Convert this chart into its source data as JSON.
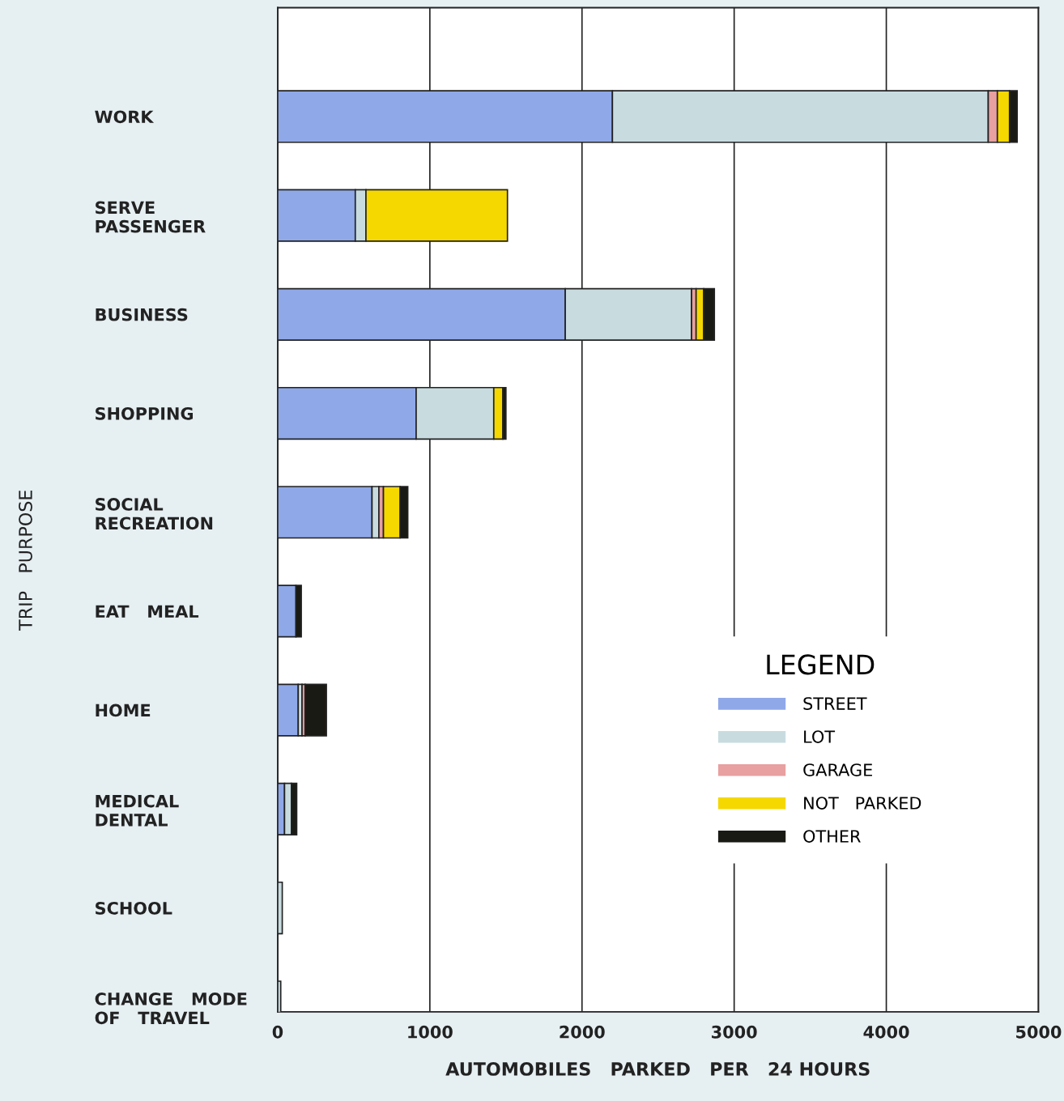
{
  "chart_data": {
    "type": "bar",
    "orientation": "horizontal",
    "stacked": true,
    "xlabel": "AUTOMOBILES   PARKED   PER   24 HOURS",
    "ylabel": "TRIP   PURPOSE",
    "legend_title": "LEGEND",
    "categories": [
      "WORK",
      "SERVE\nPASSENGER",
      "BUSINESS",
      "SHOPPING",
      "SOCIAL\nRECREATION",
      "EAT   MEAL",
      "HOME",
      "MEDICAL\nDENTAL",
      "SCHOOL",
      "CHANGE   MODE\nOF   TRAVEL"
    ],
    "series": [
      {
        "name": "STREET",
        "color": "#8fa8e8",
        "values": [
          2200,
          510,
          1890,
          910,
          620,
          120,
          135,
          45,
          0,
          0
        ]
      },
      {
        "name": "LOT",
        "color": "#c8dce0",
        "values": [
          2470,
          70,
          830,
          510,
          45,
          0,
          25,
          45,
          30,
          20
        ]
      },
      {
        "name": "GARAGE",
        "color": "#e8a0a0",
        "values": [
          60,
          0,
          30,
          0,
          30,
          0,
          20,
          0,
          0,
          0
        ]
      },
      {
        "name": "NOT   PARKED",
        "color": "#f5d800",
        "values": [
          80,
          930,
          50,
          60,
          110,
          0,
          0,
          0,
          0,
          0
        ]
      },
      {
        "name": "OTHER",
        "color": "#1a1a14",
        "values": [
          50,
          0,
          70,
          20,
          50,
          35,
          140,
          35,
          0,
          0
        ]
      }
    ],
    "xlim": [
      0,
      5000
    ],
    "xticks": [
      0,
      1000,
      2000,
      3000,
      4000,
      5000
    ],
    "grid": "x",
    "legend": "lower right"
  }
}
